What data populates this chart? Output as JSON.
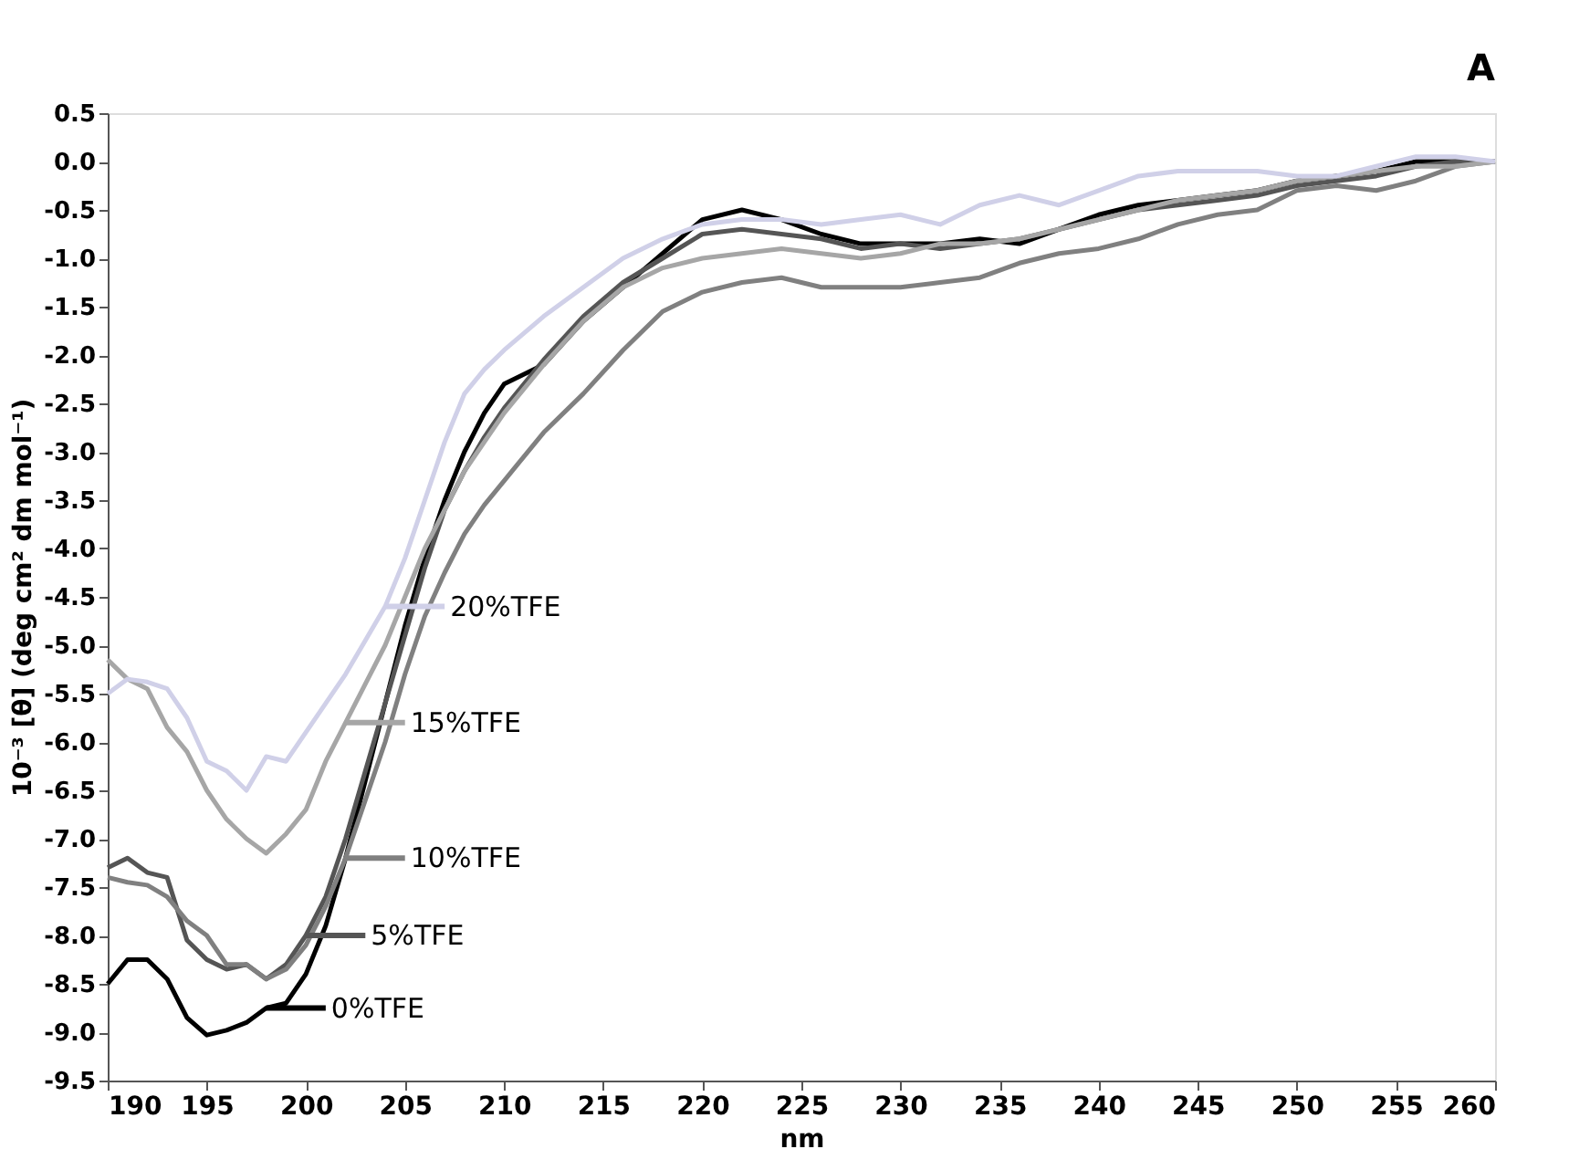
{
  "chart_data": {
    "type": "line",
    "xlabel": "nm",
    "ylabel": "10⁻³ [θ] (deg cm² dm mol⁻¹)",
    "annotations": [
      "A"
    ],
    "x": [
      190,
      191,
      192,
      193,
      194,
      195,
      196,
      197,
      198,
      199,
      200,
      201,
      202,
      203,
      204,
      205,
      206,
      207,
      208,
      209,
      210,
      212,
      214,
      216,
      218,
      220,
      222,
      224,
      226,
      228,
      230,
      232,
      234,
      236,
      238,
      240,
      242,
      244,
      246,
      248,
      250,
      252,
      254,
      256,
      258,
      260
    ],
    "series": [
      {
        "name": "0%TFE",
        "color": "#000000",
        "values": [
          -8.5,
          -8.25,
          -8.25,
          -8.45,
          -8.85,
          -9.03,
          -8.98,
          -8.9,
          -8.75,
          -8.7,
          -8.4,
          -7.9,
          -7.2,
          -6.4,
          -5.6,
          -4.8,
          -4.1,
          -3.5,
          -3.0,
          -2.6,
          -2.3,
          -2.1,
          -1.65,
          -1.3,
          -0.95,
          -0.6,
          -0.5,
          -0.6,
          -0.75,
          -0.85,
          -0.85,
          -0.85,
          -0.8,
          -0.85,
          -0.7,
          -0.55,
          -0.45,
          -0.4,
          -0.35,
          -0.3,
          -0.2,
          -0.15,
          -0.1,
          0.0,
          0.0,
          0.0
        ]
      },
      {
        "name": "5%TFE",
        "color": "#555555",
        "values": [
          -7.3,
          -7.2,
          -7.35,
          -7.4,
          -8.05,
          -8.25,
          -8.35,
          -8.3,
          -8.45,
          -8.3,
          -8.0,
          -7.6,
          -7.0,
          -6.3,
          -5.6,
          -4.9,
          -4.2,
          -3.6,
          -3.2,
          -2.85,
          -2.55,
          -2.05,
          -1.6,
          -1.25,
          -1.0,
          -0.75,
          -0.7,
          -0.75,
          -0.8,
          -0.9,
          -0.85,
          -0.9,
          -0.85,
          -0.8,
          -0.7,
          -0.6,
          -0.5,
          -0.45,
          -0.4,
          -0.35,
          -0.25,
          -0.2,
          -0.15,
          -0.05,
          0.0,
          0.0
        ]
      },
      {
        "name": "10%TFE",
        "color": "#808080",
        "values": [
          -7.4,
          -7.45,
          -7.48,
          -7.6,
          -7.85,
          -8.0,
          -8.3,
          -8.3,
          -8.45,
          -8.35,
          -8.1,
          -7.7,
          -7.2,
          -6.6,
          -6.0,
          -5.3,
          -4.7,
          -4.25,
          -3.85,
          -3.55,
          -3.3,
          -2.8,
          -2.4,
          -1.95,
          -1.55,
          -1.35,
          -1.25,
          -1.2,
          -1.3,
          -1.3,
          -1.3,
          -1.25,
          -1.2,
          -1.05,
          -0.95,
          -0.9,
          -0.8,
          -0.65,
          -0.55,
          -0.5,
          -0.3,
          -0.25,
          -0.3,
          -0.2,
          -0.05,
          0.0
        ]
      },
      {
        "name": "15%TFE",
        "color": "#a6a6a6",
        "values": [
          -5.15,
          -5.35,
          -5.45,
          -5.85,
          -6.1,
          -6.5,
          -6.8,
          -7.0,
          -7.15,
          -6.95,
          -6.7,
          -6.2,
          -5.8,
          -5.4,
          -5.0,
          -4.5,
          -4.0,
          -3.6,
          -3.2,
          -2.9,
          -2.6,
          -2.1,
          -1.65,
          -1.3,
          -1.1,
          -1.0,
          -0.95,
          -0.9,
          -0.95,
          -1.0,
          -0.95,
          -0.85,
          -0.85,
          -0.8,
          -0.7,
          -0.6,
          -0.5,
          -0.4,
          -0.35,
          -0.3,
          -0.2,
          -0.15,
          -0.1,
          -0.05,
          -0.05,
          0.0
        ]
      },
      {
        "name": "20%TFE",
        "color": "#d0d0e8",
        "values": [
          -5.5,
          -5.35,
          -5.38,
          -5.45,
          -5.75,
          -6.2,
          -6.3,
          -6.5,
          -6.15,
          -6.2,
          -5.9,
          -5.6,
          -5.3,
          -4.95,
          -4.6,
          -4.1,
          -3.5,
          -2.9,
          -2.4,
          -2.15,
          -1.95,
          -1.6,
          -1.3,
          -1.0,
          -0.8,
          -0.65,
          -0.6,
          -0.6,
          -0.65,
          -0.6,
          -0.55,
          -0.65,
          -0.45,
          -0.35,
          -0.45,
          -0.3,
          -0.15,
          -0.1,
          -0.1,
          -0.1,
          -0.15,
          -0.15,
          -0.05,
          0.05,
          0.05,
          0.0
        ]
      }
    ],
    "xlim": [
      190,
      260
    ],
    "xticks": [
      190,
      195,
      200,
      205,
      210,
      215,
      220,
      225,
      230,
      235,
      240,
      245,
      250,
      255,
      260
    ],
    "ylim": [
      -9.5,
      0.5
    ],
    "yticks": [
      0.5,
      {
        "value": 0,
        "label": "0.0"
      },
      -0.5,
      {
        "value": -1,
        "label": "-1.0"
      },
      -1.5,
      {
        "value": -2,
        "label": "-2.0"
      },
      -2.5,
      {
        "value": -3,
        "label": "-3.0"
      },
      -3.5,
      {
        "value": -4,
        "label": "-4.0"
      },
      -4.5,
      {
        "value": -5,
        "label": "-5.0"
      },
      -5.5,
      {
        "value": -6,
        "label": "-6.0"
      },
      -6.5,
      {
        "value": -7,
        "label": "-7.0"
      },
      -7.5,
      {
        "value": -8,
        "label": "-8.0"
      },
      -8.5,
      {
        "value": -9,
        "label": "-9.0"
      },
      -9.5
    ],
    "grid": false,
    "legend": "left",
    "marker": "none",
    "line_style": "solid"
  }
}
